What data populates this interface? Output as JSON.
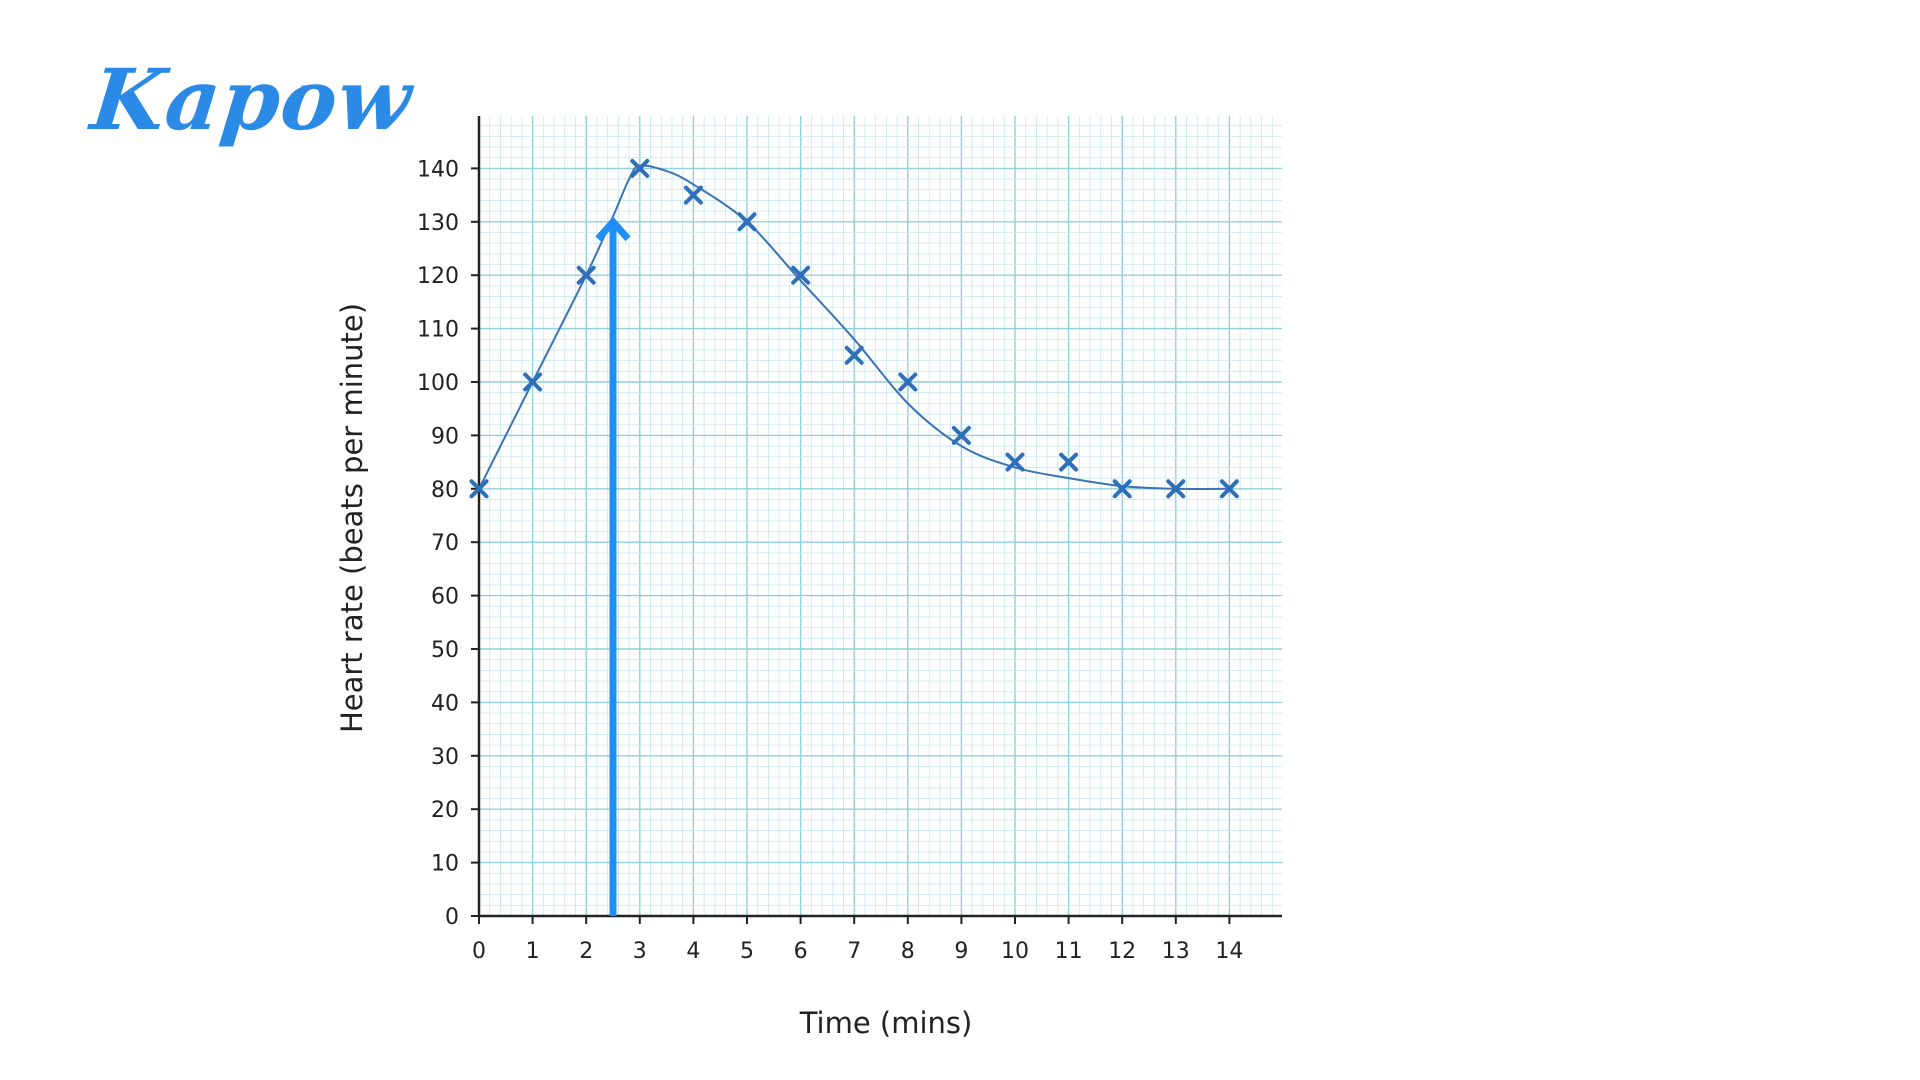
{
  "brand": {
    "logo_text": "Kapow",
    "logo_tm": "™"
  },
  "colors": {
    "grid_major": "#8fd0dc",
    "grid_minor": "#c6e8ee",
    "axis": "#222222",
    "marker": "#2f6fba",
    "curve": "#3a74b4",
    "arrow": "#1e90f5",
    "text": "#222222"
  },
  "chart_data": {
    "type": "scatter",
    "xlabel": "Time (mins)",
    "ylabel": "Heart rate (beats per minute)",
    "xlim": [
      0,
      15
    ],
    "ylim": [
      0,
      150
    ],
    "x_ticks": [
      0,
      1,
      2,
      3,
      4,
      5,
      6,
      7,
      8,
      9,
      10,
      11,
      12,
      13,
      14
    ],
    "y_ticks": [
      0,
      10,
      20,
      30,
      40,
      50,
      60,
      70,
      80,
      90,
      100,
      110,
      120,
      130,
      140
    ],
    "grid": true,
    "series": [
      {
        "marker": "x",
        "x": [
          0,
          1,
          2,
          3,
          4,
          5,
          6,
          7,
          8,
          9,
          10,
          11,
          12,
          13,
          14
        ],
        "y": [
          80,
          100,
          120,
          140,
          135,
          130,
          120,
          105,
          100,
          90,
          85,
          85,
          80,
          80,
          80
        ]
      }
    ],
    "curve_of_best_fit": {
      "x": [
        0,
        1,
        2,
        2.5,
        2.8,
        3,
        3.5,
        4,
        5,
        6,
        7,
        8,
        9,
        10,
        11,
        12,
        13,
        14
      ],
      "y": [
        80,
        100,
        120,
        131,
        138,
        140.5,
        139.5,
        137,
        130,
        119,
        108,
        96,
        88,
        84,
        82,
        80.5,
        80,
        80
      ]
    },
    "annotation_arrow": {
      "x": 2.5,
      "y_from": 0,
      "y_to": 130
    }
  }
}
